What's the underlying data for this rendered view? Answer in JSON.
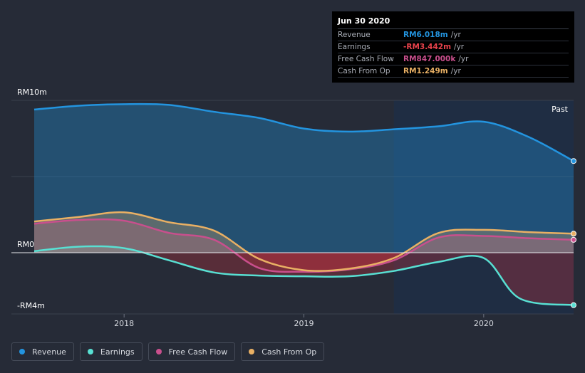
{
  "chart_data": {
    "type": "area",
    "y_axis_labels": [
      "RM10m",
      "RM0",
      "-RM4m"
    ],
    "ylim": [
      -4,
      10
    ],
    "xlim": [
      2017.5,
      2020.5
    ],
    "x_ticks": [
      {
        "label": "2018",
        "value": 2018.0
      },
      {
        "label": "2019",
        "value": 2019.0
      },
      {
        "label": "2020",
        "value": 2020.0
      }
    ],
    "past_label": "Past",
    "forecast_start": 2019.5,
    "series": [
      {
        "name": "Revenue",
        "color": "#2394df",
        "points": [
          [
            2017.5,
            9.4
          ],
          [
            2017.75,
            9.65
          ],
          [
            2018.0,
            9.75
          ],
          [
            2018.25,
            9.7
          ],
          [
            2018.5,
            9.25
          ],
          [
            2018.75,
            8.85
          ],
          [
            2019.0,
            8.15
          ],
          [
            2019.25,
            7.95
          ],
          [
            2019.5,
            8.1
          ],
          [
            2019.75,
            8.3
          ],
          [
            2020.0,
            8.6
          ],
          [
            2020.25,
            7.6
          ],
          [
            2020.5,
            6.018
          ]
        ]
      },
      {
        "name": "Earnings",
        "color": "#58e0d3",
        "points": [
          [
            2017.5,
            0.1
          ],
          [
            2017.75,
            0.4
          ],
          [
            2018.0,
            0.3
          ],
          [
            2018.25,
            -0.5
          ],
          [
            2018.5,
            -1.3
          ],
          [
            2018.75,
            -1.5
          ],
          [
            2019.0,
            -1.55
          ],
          [
            2019.25,
            -1.55
          ],
          [
            2019.5,
            -1.2
          ],
          [
            2019.75,
            -0.6
          ],
          [
            2020.0,
            -0.35
          ],
          [
            2020.2,
            -3.0
          ],
          [
            2020.5,
            -3.442
          ]
        ]
      },
      {
        "name": "Free Cash Flow",
        "color": "#c94f8d",
        "points": [
          [
            2017.5,
            1.9
          ],
          [
            2017.75,
            2.15
          ],
          [
            2018.0,
            2.1
          ],
          [
            2018.25,
            1.3
          ],
          [
            2018.5,
            0.85
          ],
          [
            2018.75,
            -1.0
          ],
          [
            2019.0,
            -1.25
          ],
          [
            2019.25,
            -1.1
          ],
          [
            2019.5,
            -0.5
          ],
          [
            2019.75,
            1.0
          ],
          [
            2020.0,
            1.1
          ],
          [
            2020.25,
            0.95
          ],
          [
            2020.5,
            0.847
          ]
        ]
      },
      {
        "name": "Cash From Op",
        "color": "#e9b064",
        "points": [
          [
            2017.5,
            2.05
          ],
          [
            2017.75,
            2.35
          ],
          [
            2018.0,
            2.65
          ],
          [
            2018.25,
            2.0
          ],
          [
            2018.5,
            1.45
          ],
          [
            2018.75,
            -0.4
          ],
          [
            2019.0,
            -1.15
          ],
          [
            2019.25,
            -1.05
          ],
          [
            2019.5,
            -0.35
          ],
          [
            2019.75,
            1.3
          ],
          [
            2020.0,
            1.5
          ],
          [
            2020.25,
            1.35
          ],
          [
            2020.5,
            1.249
          ]
        ]
      }
    ]
  },
  "tooltip": {
    "date": "Jun 30 2020",
    "rows": [
      {
        "name": "Revenue",
        "value": "RM6.018m",
        "unit": "/yr",
        "color": "#2394df"
      },
      {
        "name": "Earnings",
        "value": "-RM3.442m",
        "unit": "/yr",
        "color": "#e8424b"
      },
      {
        "name": "Free Cash Flow",
        "value": "RM847.000k",
        "unit": "/yr",
        "color": "#c94f8d"
      },
      {
        "name": "Cash From Op",
        "value": "RM1.249m",
        "unit": "/yr",
        "color": "#e9b064"
      }
    ]
  },
  "legend": [
    {
      "label": "Revenue",
      "color": "#2394df"
    },
    {
      "label": "Earnings",
      "color": "#58e0d3"
    },
    {
      "label": "Free Cash Flow",
      "color": "#c94f8d"
    },
    {
      "label": "Cash From Op",
      "color": "#e9b064"
    }
  ]
}
